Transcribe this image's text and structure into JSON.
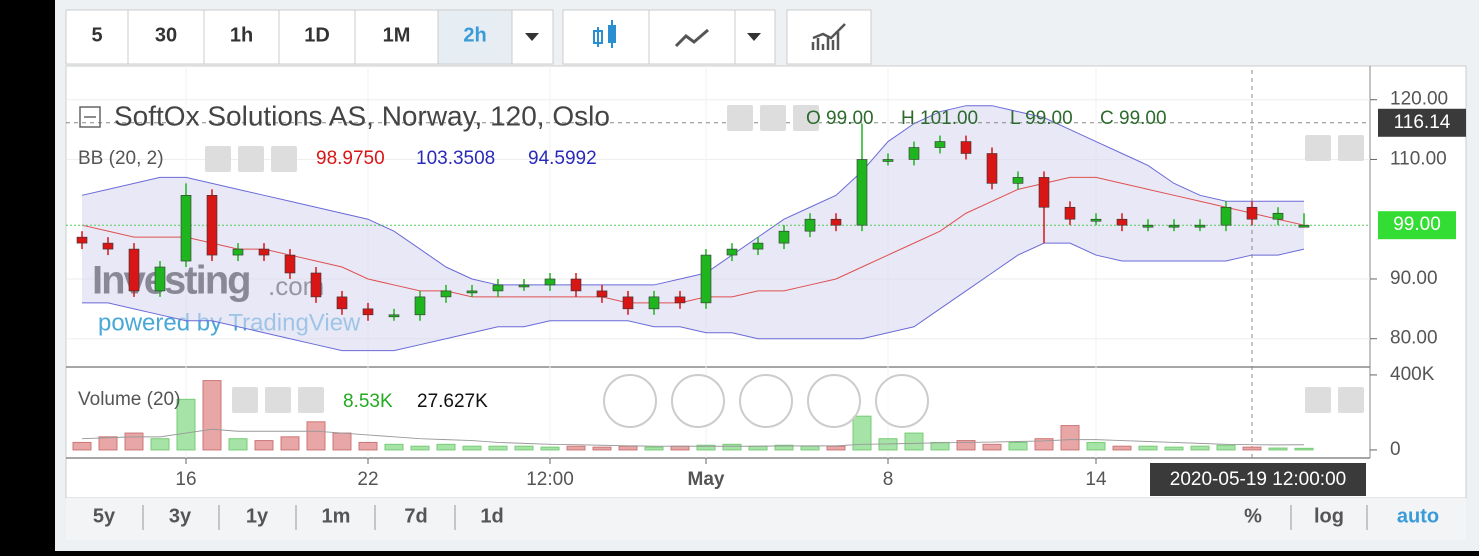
{
  "toolbar": {
    "intervals": [
      "5",
      "30",
      "1h",
      "1D",
      "1M",
      "2h"
    ],
    "active_interval_index": 5
  },
  "chart_data": {
    "type": "candlestick",
    "title": "SoftOx Solutions AS, Norway, 120, Oslo",
    "ohlc_legend": [
      "O 99.00",
      "H 101.00",
      "L 99.00",
      "C 99.00"
    ],
    "watermark": "Investing",
    "watermark_suffix": ".com",
    "powered_by": "powered by TradingView",
    "up_color": "#1fb51f",
    "down_color": "#d81616",
    "open": [
      97,
      96,
      95,
      88,
      93,
      104,
      94,
      95,
      94,
      91,
      87,
      85,
      84,
      84,
      87,
      88,
      88,
      89,
      89,
      90,
      88,
      87,
      85,
      87,
      86,
      94,
      95,
      96,
      98,
      100,
      99,
      110,
      110,
      112,
      113,
      111,
      106,
      107,
      102,
      100,
      100,
      99,
      99,
      99,
      99,
      102,
      100,
      99
    ],
    "high": [
      98,
      97,
      96,
      93,
      106,
      105,
      96,
      96,
      95,
      92,
      88,
      86,
      85,
      88,
      89,
      89,
      90,
      90,
      91,
      91,
      89,
      88,
      88,
      88,
      95,
      96,
      97,
      99,
      101,
      101,
      116,
      111,
      113,
      114,
      114,
      112,
      108,
      108,
      103,
      101,
      101,
      100,
      100,
      100,
      103,
      103,
      102,
      101
    ],
    "low": [
      95,
      94,
      87,
      87,
      92,
      93,
      93,
      93,
      90,
      86,
      84,
      83,
      83,
      83,
      86,
      87,
      87,
      88,
      88,
      87,
      86,
      84,
      84,
      85,
      85,
      93,
      94,
      95,
      97,
      98,
      98,
      109,
      109,
      111,
      110,
      105,
      105,
      96,
      99,
      99,
      98,
      98,
      98,
      98,
      98,
      99,
      99,
      99
    ],
    "close": [
      96,
      95,
      88,
      92,
      104,
      94,
      95,
      94,
      91,
      87,
      85,
      84,
      84,
      87,
      88,
      88,
      89,
      89,
      90,
      88,
      87,
      85,
      87,
      86,
      94,
      95,
      96,
      98,
      100,
      99,
      110,
      110,
      112,
      113,
      111,
      106,
      107,
      102,
      100,
      100,
      99,
      99,
      99,
      99,
      102,
      100,
      101,
      99
    ],
    "ylim": [
      75.6,
      123.3
    ],
    "yticks": [
      {
        "value": 120,
        "label": "120.00"
      },
      {
        "value": 110,
        "label": "110.00"
      },
      {
        "value": 90,
        "label": "90.00"
      },
      {
        "value": 80,
        "label": "80.00"
      }
    ],
    "xticks": [
      {
        "index": 4,
        "label": "16"
      },
      {
        "index": 11,
        "label": "22"
      },
      {
        "index": 18,
        "label": "12:00"
      },
      {
        "index": 24,
        "label": "May"
      },
      {
        "index": 31,
        "label": "8"
      },
      {
        "index": 39,
        "label": "14"
      }
    ],
    "last_price": {
      "value": 99,
      "label": "99.00"
    },
    "crosshair": {
      "price": {
        "value": 116.14,
        "label": "116.14"
      },
      "index": 45,
      "time": "2020-05-19 12:00:00"
    },
    "bollinger": {
      "name": "BB (20, 2)",
      "legend": [
        "98.9750",
        "103.3508",
        "94.5992"
      ],
      "mid_color": "#e05050",
      "band_color": "#6a6ad8",
      "fill": "#d8d8f0",
      "upper": [
        104,
        105,
        106,
        107,
        107,
        106,
        105,
        104,
        103,
        102,
        101,
        100,
        98,
        95,
        92,
        90,
        89,
        89,
        89,
        89,
        89,
        89,
        89,
        90,
        91,
        94,
        97,
        100,
        102,
        104,
        108,
        113,
        116,
        118,
        119,
        119,
        118,
        117,
        115,
        113,
        111,
        109,
        106,
        104,
        103,
        103,
        103,
        103
      ],
      "mid": [
        99,
        98,
        97,
        97,
        97,
        96,
        95,
        95,
        94,
        93,
        92,
        90,
        89,
        88,
        88,
        87,
        87,
        87,
        87,
        87,
        87,
        86,
        86,
        86,
        87,
        87,
        88,
        88,
        89,
        90,
        92,
        94,
        96,
        98,
        101,
        103,
        105,
        106,
        107,
        107,
        106,
        105,
        104,
        103,
        102,
        101,
        100,
        99
      ],
      "lower": [
        86,
        86,
        85,
        84,
        83,
        83,
        82,
        81,
        80,
        79,
        78,
        78,
        78,
        79,
        80,
        81,
        82,
        82,
        83,
        83,
        83,
        83,
        82,
        82,
        81,
        81,
        80,
        80,
        80,
        80,
        80,
        81,
        82,
        85,
        88,
        91,
        94,
        96,
        96,
        94,
        93,
        93,
        93,
        93,
        93,
        94,
        94,
        95
      ]
    },
    "volume": {
      "name": "Volume (20)",
      "legend": [
        "8.53K",
        "27.627K"
      ],
      "up_color": "#a6e3a6",
      "down_color": "#e8a6a6",
      "ma_color": "#999999",
      "ylim": [
        -43000,
        437000
      ],
      "yticks": [
        {
          "value": 400000,
          "label": "400K"
        },
        {
          "value": 0,
          "label": "0"
        }
      ],
      "values": [
        40000,
        70000,
        90000,
        60000,
        270000,
        370000,
        60000,
        50000,
        70000,
        150000,
        90000,
        40000,
        30000,
        20000,
        30000,
        20000,
        20000,
        20000,
        15000,
        20000,
        15000,
        20000,
        15000,
        20000,
        25000,
        30000,
        20000,
        25000,
        20000,
        20000,
        180000,
        60000,
        90000,
        40000,
        50000,
        30000,
        40000,
        60000,
        130000,
        40000,
        20000,
        20000,
        15000,
        20000,
        25000,
        15000,
        10000,
        8530
      ],
      "ma": [
        60000,
        65000,
        70000,
        70000,
        90000,
        110000,
        100000,
        100000,
        100000,
        100000,
        90000,
        80000,
        70000,
        60000,
        55000,
        50000,
        40000,
        35000,
        30000,
        28000,
        25000,
        22000,
        20000,
        20000,
        20000,
        20000,
        20000,
        21000,
        22000,
        22000,
        30000,
        32000,
        35000,
        38000,
        40000,
        42000,
        45000,
        48000,
        55000,
        55000,
        50000,
        45000,
        40000,
        35000,
        30000,
        28000,
        27000,
        27627
      ]
    }
  },
  "range_bar": {
    "periods": [
      "5y",
      "3y",
      "1y",
      "1m",
      "7d",
      "1d"
    ],
    "scales": [
      "%",
      "log",
      "auto"
    ]
  }
}
